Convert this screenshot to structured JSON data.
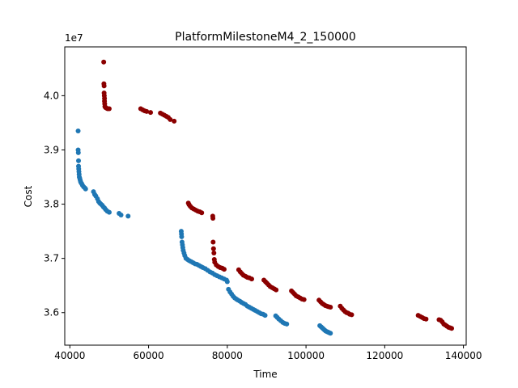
{
  "chart_data": {
    "type": "scatter",
    "title": "PlatformMilestoneM4_2_150000",
    "xlabel": "Time",
    "ylabel": "Cost",
    "offset_text": "1e7",
    "xlim": [
      38700,
      140700
    ],
    "ylim": [
      35400000,
      40900000
    ],
    "xticks": [
      40000,
      60000,
      80000,
      100000,
      120000,
      140000
    ],
    "xtick_labels": [
      "40000",
      "60000",
      "80000",
      "100000",
      "120000",
      "140000"
    ],
    "yticks": [
      36000000,
      37000000,
      38000000,
      39000000,
      40000000
    ],
    "ytick_labels": [
      "3.6",
      "3.7",
      "3.8",
      "3.9",
      "4.0"
    ],
    "grid": false,
    "legend": "none",
    "series": [
      {
        "color": "#1f77b4",
        "x": [
          42100,
          42100,
          42150,
          42200,
          42200,
          42250,
          42300,
          42350,
          42400,
          42500,
          42600,
          42700,
          42800,
          43000,
          43200,
          43500,
          43800,
          44000,
          46000,
          46300,
          46600,
          47000,
          47300,
          47600,
          47900,
          48200,
          48500,
          48800,
          49100,
          49500,
          50000,
          52500,
          53000,
          54800,
          68300,
          68350,
          68400,
          68500,
          68600,
          68700,
          68800,
          69000,
          69200,
          69500,
          69900,
          70300,
          70800,
          71300,
          71800,
          72300,
          72800,
          73300,
          73800,
          74400,
          75000,
          75600,
          76200,
          76800,
          77400,
          78000,
          78600,
          79200,
          79800,
          80000,
          80300,
          80700,
          81100,
          81500,
          81900,
          82300,
          82700,
          83200,
          83600,
          84100,
          84600,
          85100,
          85600,
          86100,
          86600,
          87100,
          87600,
          88100,
          88600,
          89100,
          89600,
          92300,
          92700,
          93100,
          93600,
          94100,
          94600,
          95100,
          103500,
          103800,
          104100,
          104400,
          104700,
          105000,
          105300,
          105600,
          105900,
          106200
        ],
        "y": [
          39350000,
          39000000,
          38950000,
          38800000,
          38700000,
          38650000,
          38600000,
          38550000,
          38500000,
          38480000,
          38450000,
          38420000,
          38400000,
          38380000,
          38350000,
          38320000,
          38300000,
          38280000,
          38230000,
          38180000,
          38150000,
          38100000,
          38050000,
          38020000,
          38000000,
          37980000,
          37950000,
          37930000,
          37900000,
          37870000,
          37850000,
          37830000,
          37800000,
          37780000,
          37500000,
          37450000,
          37400000,
          37300000,
          37250000,
          37200000,
          37150000,
          37100000,
          37050000,
          37000000,
          36980000,
          36960000,
          36940000,
          36920000,
          36900000,
          36890000,
          36870000,
          36850000,
          36830000,
          36810000,
          36780000,
          36750000,
          36730000,
          36700000,
          36680000,
          36660000,
          36640000,
          36620000,
          36600000,
          36570000,
          36430000,
          36380000,
          36340000,
          36300000,
          36270000,
          36250000,
          36230000,
          36210000,
          36190000,
          36170000,
          36150000,
          36120000,
          36100000,
          36080000,
          36060000,
          36040000,
          36020000,
          36000000,
          35980000,
          35970000,
          35950000,
          35940000,
          35910000,
          35880000,
          35850000,
          35820000,
          35800000,
          35790000,
          35760000,
          35740000,
          35720000,
          35700000,
          35680000,
          35660000,
          35650000,
          35640000,
          35630000,
          35620000
        ]
      },
      {
        "color": "#8b0000",
        "x": [
          48600,
          48650,
          48700,
          48700,
          48750,
          48800,
          48800,
          48850,
          48900,
          49000,
          49100,
          49300,
          49600,
          50000,
          58000,
          58500,
          59000,
          59500,
          60500,
          63000,
          63500,
          64000,
          64500,
          65000,
          65500,
          66500,
          70100,
          70300,
          70600,
          71000,
          71500,
          72000,
          72500,
          73000,
          73500,
          76300,
          76350,
          76400,
          76500,
          76600,
          76700,
          76800,
          77200,
          77700,
          78200,
          78700,
          79200,
          82900,
          83300,
          83700,
          84100,
          84600,
          85100,
          85600,
          86200,
          89300,
          89700,
          90100,
          90500,
          90900,
          91400,
          91900,
          92400,
          96300,
          96700,
          97100,
          97500,
          98000,
          98500,
          99000,
          99500,
          103300,
          103700,
          104100,
          104500,
          104900,
          105300,
          105700,
          106200,
          108700,
          109100,
          109500,
          109900,
          110300,
          110700,
          111100,
          111600,
          128500,
          129000,
          129500,
          130000,
          130500,
          133800,
          134200,
          134600,
          135000,
          135400,
          135800,
          136200,
          136600,
          137000
        ],
        "y": [
          40620000,
          40220000,
          40180000,
          40050000,
          40000000,
          39950000,
          39900000,
          39850000,
          39800000,
          39790000,
          39780000,
          39770000,
          39760000,
          39760000,
          39760000,
          39740000,
          39720000,
          39710000,
          39690000,
          39680000,
          39660000,
          39640000,
          39620000,
          39600000,
          39560000,
          39530000,
          38020000,
          37990000,
          37960000,
          37930000,
          37910000,
          37890000,
          37870000,
          37860000,
          37840000,
          37780000,
          37740000,
          37300000,
          37180000,
          37100000,
          36980000,
          36930000,
          36880000,
          36850000,
          36830000,
          36820000,
          36800000,
          36790000,
          36750000,
          36720000,
          36690000,
          36670000,
          36650000,
          36640000,
          36620000,
          36600000,
          36570000,
          36540000,
          36510000,
          36480000,
          36460000,
          36440000,
          36420000,
          36400000,
          36370000,
          36340000,
          36310000,
          36290000,
          36270000,
          36250000,
          36240000,
          36230000,
          36200000,
          36170000,
          36150000,
          36130000,
          36120000,
          36110000,
          36100000,
          36120000,
          36080000,
          36050000,
          36020000,
          36000000,
          35990000,
          35970000,
          35960000,
          35950000,
          35930000,
          35910000,
          35890000,
          35880000,
          35870000,
          35860000,
          35830000,
          35790000,
          35770000,
          35750000,
          35730000,
          35720000,
          35710000
        ]
      }
    ]
  }
}
